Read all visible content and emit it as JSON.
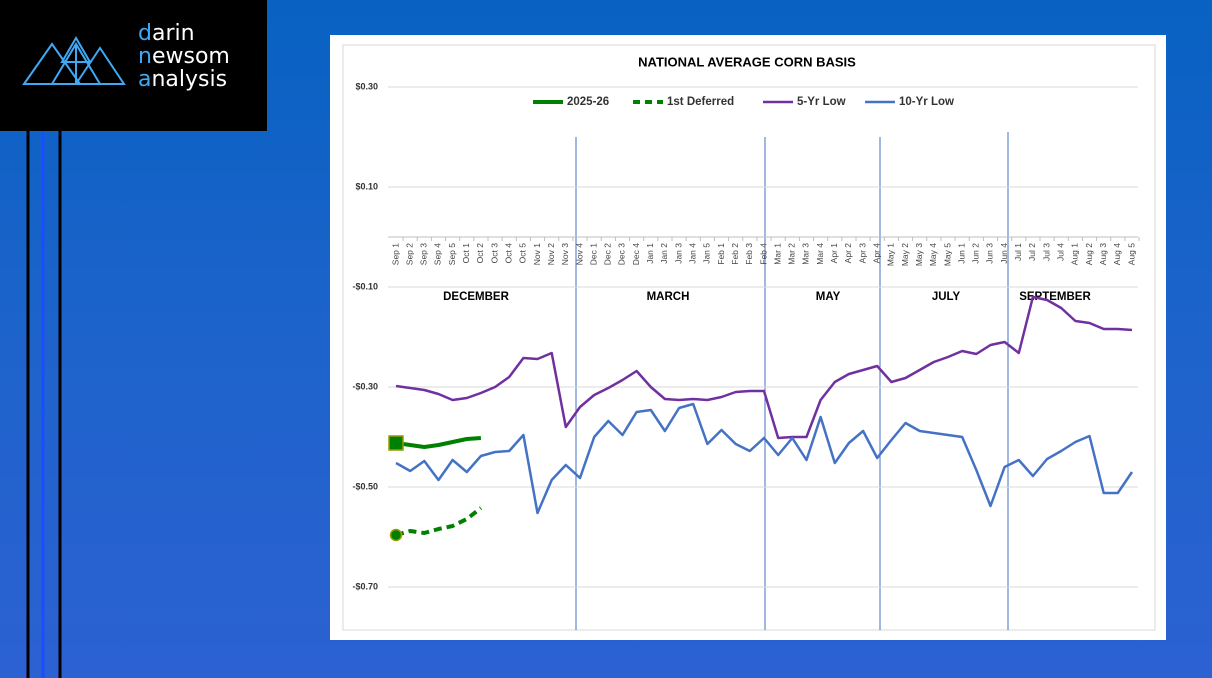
{
  "logo": [
    "darin",
    "newsom",
    "analysis"
  ],
  "chart_data": {
    "type": "line",
    "title": "NATIONAL AVERAGE CORN BASIS",
    "categories": [
      "Sep 1",
      "Sep 2",
      "Sep 3",
      "Sep 4",
      "Sep 5",
      "Oct 1",
      "Oct 2",
      "Oct 3",
      "Oct 4",
      "Oct 5",
      "Nov 1",
      "Nov 2",
      "Nov 3",
      "Nov 4",
      "Dec 1",
      "Dec 2",
      "Dec 3",
      "Dec 4",
      "Jan 1",
      "Jan 2",
      "Jan 3",
      "Jan 4",
      "Jan 5",
      "Feb 1",
      "Feb 2",
      "Feb 3",
      "Feb 4",
      "Mar 1",
      "Mar 2",
      "Mar 3",
      "Mar 4",
      "Apr 1",
      "Apr 2",
      "Apr 3",
      "Apr 4",
      "May 1",
      "May 2",
      "May 3",
      "May 4",
      "May 5",
      "Jun 1",
      "Jun 2",
      "Jun 3",
      "Jun 4",
      "Jul 1",
      "Jul 2",
      "Jul 3",
      "Jul 4",
      "Aug 1",
      "Aug 2",
      "Aug 3",
      "Aug 4",
      "Aug 5"
    ],
    "series": [
      {
        "name": "2025-26",
        "color": "#008000",
        "marker": "square",
        "values": [
          -0.412,
          -0.416,
          -0.42,
          -0.416,
          -0.41,
          -0.404,
          -0.402,
          null,
          null,
          null,
          null,
          null,
          null,
          null,
          null,
          null,
          null,
          null,
          null,
          null,
          null,
          null,
          null,
          null,
          null,
          null,
          null,
          null,
          null,
          null,
          null,
          null,
          null,
          null,
          null,
          null,
          null,
          null,
          null,
          null,
          null,
          null,
          null,
          null,
          null,
          null,
          null,
          null,
          null,
          null,
          null,
          null,
          null
        ]
      },
      {
        "name": "1st Deferred",
        "color": "#008000",
        "marker": "circle",
        "dashed": true,
        "values": [
          -0.596,
          -0.588,
          -0.592,
          -0.584,
          -0.578,
          -0.564,
          -0.542,
          null,
          null,
          null,
          null,
          null,
          null,
          null,
          null,
          null,
          null,
          null,
          null,
          null,
          null,
          null,
          null,
          null,
          null,
          null,
          null,
          null,
          null,
          null,
          null,
          null,
          null,
          null,
          null,
          null,
          null,
          null,
          null,
          null,
          null,
          null,
          null,
          null,
          null,
          null,
          null,
          null,
          null,
          null,
          null,
          null,
          null
        ]
      },
      {
        "name": "5-Yr Low",
        "color": "#7030a0",
        "values": [
          -0.298,
          -0.302,
          -0.306,
          -0.314,
          -0.326,
          -0.322,
          -0.312,
          -0.3,
          -0.28,
          -0.242,
          -0.244,
          -0.232,
          -0.38,
          -0.34,
          -0.316,
          -0.302,
          -0.286,
          -0.268,
          -0.3,
          -0.324,
          -0.326,
          -0.324,
          -0.326,
          -0.32,
          -0.31,
          -0.308,
          -0.308,
          -0.402,
          -0.4,
          -0.4,
          -0.326,
          -0.29,
          -0.274,
          -0.266,
          -0.258,
          -0.29,
          -0.282,
          -0.266,
          -0.25,
          -0.24,
          -0.228,
          -0.234,
          -0.216,
          -0.21,
          -0.232,
          -0.12,
          -0.126,
          -0.142,
          -0.168,
          -0.172,
          -0.184,
          -0.184,
          -0.186
        ]
      },
      {
        "name": "10-Yr Low",
        "color": "#4472c4",
        "values": [
          -0.452,
          -0.468,
          -0.448,
          -0.486,
          -0.446,
          -0.47,
          -0.438,
          -0.43,
          -0.428,
          -0.396,
          -0.552,
          -0.486,
          -0.456,
          -0.482,
          -0.4,
          -0.368,
          -0.396,
          -0.35,
          -0.346,
          -0.388,
          -0.342,
          -0.334,
          -0.414,
          -0.386,
          -0.414,
          -0.428,
          -0.402,
          -0.436,
          -0.402,
          -0.446,
          -0.36,
          -0.452,
          -0.412,
          -0.388,
          -0.442,
          -0.406,
          -0.372,
          -0.388,
          -0.392,
          -0.396,
          -0.4,
          -0.466,
          -0.538,
          -0.46,
          -0.446,
          -0.478,
          -0.444,
          -0.428,
          -0.41,
          -0.398,
          -0.512,
          -0.512,
          -0.47
        ]
      }
    ],
    "ylim": [
      -0.78,
      0.3
    ],
    "yticks": [
      {
        "value": 0.3,
        "label": "$0.30"
      },
      {
        "value": 0.1,
        "label": "$0.10"
      },
      {
        "value": -0.1,
        "label": "-$0.10"
      },
      {
        "value": -0.3,
        "label": "-$0.30"
      },
      {
        "value": -0.5,
        "label": "-$0.50"
      },
      {
        "value": -0.7,
        "label": "-$0.70"
      }
    ],
    "grid": true,
    "legend": "top",
    "annotations": [
      "DECEMBER",
      "MARCH",
      "MAY",
      "JULY",
      "SEPTEMBER"
    ]
  }
}
